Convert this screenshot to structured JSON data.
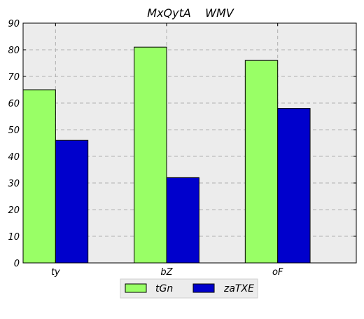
{
  "chart_data": {
    "type": "bar",
    "title": "MxQytA    WMV",
    "xlabel": "",
    "ylabel": "",
    "categories": [
      "ty",
      "bZ",
      "oF"
    ],
    "series": [
      {
        "name": "tGn",
        "values": [
          65,
          81,
          76
        ],
        "color": "#99ff66"
      },
      {
        "name": "zaTXE",
        "values": [
          46,
          32,
          58
        ],
        "color": "#0000cc"
      }
    ],
    "ylim": [
      0,
      90
    ],
    "yticks": [
      "0",
      "10",
      "20",
      "30",
      "40",
      "50",
      "60",
      "70",
      "80",
      "90"
    ],
    "grid": true,
    "legend_position": "bottom-center",
    "plot_background": "#ececec"
  }
}
